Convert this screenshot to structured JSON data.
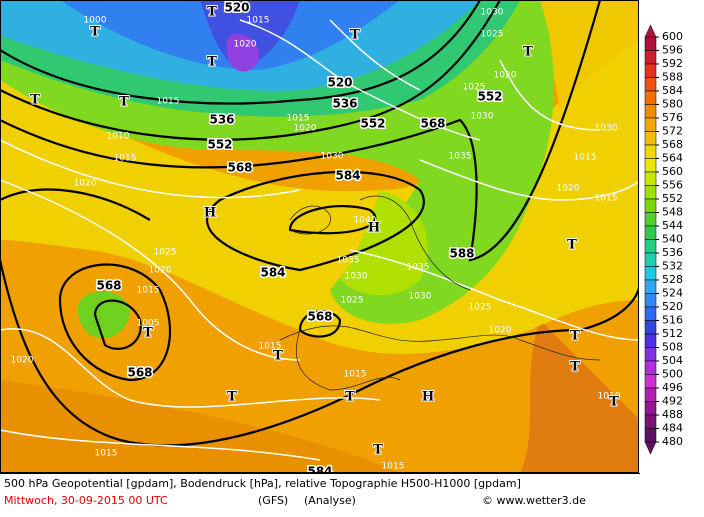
{
  "map": {
    "labels": [
      "1000",
      "T",
      "520",
      "1015",
      "1020",
      "T",
      "T",
      "T",
      "1030",
      "1025",
      "T",
      "1020",
      "1025",
      "552",
      "1030",
      "T",
      "T",
      "1015",
      "520",
      "536",
      "552",
      "568",
      "536",
      "552",
      "568",
      "1015",
      "1020",
      "1010",
      "1015",
      "1030",
      "1035",
      "1030",
      "1015",
      "1020",
      "584",
      "H",
      "1020",
      "1015",
      "1040",
      "H",
      "1025",
      "588",
      "T",
      "584",
      "1035",
      "1030",
      "1035",
      "1020",
      "568",
      "1015",
      "1025",
      "1030",
      "1025",
      "1005",
      "568",
      "1020",
      "T",
      "T",
      "568",
      "1015",
      "T",
      "1015",
      "T",
      "T",
      "T",
      "H",
      "1020",
      "1010",
      "T",
      "1015",
      "T",
      "1015",
      "584"
    ]
  },
  "colorbar": {
    "levels": [
      600,
      596,
      592,
      588,
      584,
      580,
      576,
      572,
      568,
      564,
      560,
      556,
      552,
      548,
      544,
      540,
      536,
      532,
      528,
      524,
      520,
      516,
      512,
      508,
      504,
      500,
      496,
      492,
      488,
      484,
      480
    ],
    "colors": [
      "#b0103a",
      "#d01c30",
      "#e83020",
      "#f05010",
      "#f07000",
      "#f08c00",
      "#f0a800",
      "#f0c000",
      "#f0d800",
      "#e8e800",
      "#c8e800",
      "#a0e000",
      "#78d800",
      "#50d030",
      "#30c850",
      "#20d080",
      "#20d0b0",
      "#20c8e0",
      "#30a8f0",
      "#3088f0",
      "#3068f0",
      "#3048e0",
      "#5030e0",
      "#8030e0",
      "#b030e0",
      "#d030d0",
      "#b020b0",
      "#901890",
      "#781478",
      "#601060"
    ]
  },
  "footer": {
    "caption": "500 hPa Geopotential [gpdam], Bodendruck [hPa], relative Topographie H500-H1000 [gpdam]",
    "date": "Mittwoch, 30-09-2015  00 UTC",
    "model": "(GFS)",
    "run": "(Analyse)",
    "credit": "© www.wetter3.de"
  }
}
